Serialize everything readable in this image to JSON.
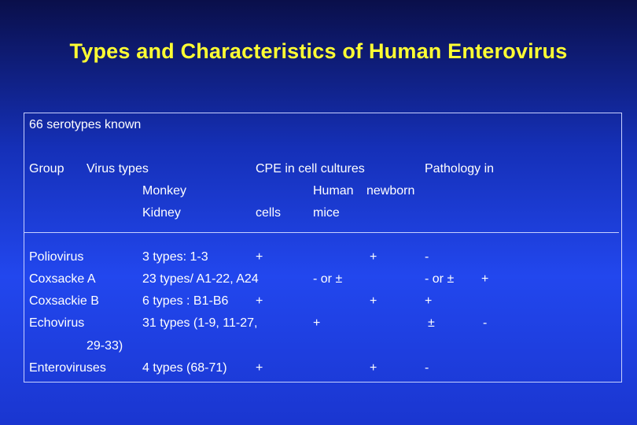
{
  "title": "Types and Characteristics of Human Enterovirus",
  "intro": "66 serotypes known",
  "header": {
    "group": "Group",
    "virus_types": "Virus types",
    "cpe": "CPE in cell cultures",
    "pathology": "Pathology in",
    "monkey": "Monkey",
    "human": "Human",
    "newborn": "newborn",
    "kidney": "Kidney",
    "cells": "cells",
    "mice": "mice"
  },
  "rows": [
    {
      "group": "Poliovirus",
      "types": "3 types: 1-3",
      "monkey": "+",
      "human": "+",
      "mice": "-",
      "extra": ""
    },
    {
      "group": "Coxsacke A",
      "types": "23 types/ A1-22, A24",
      "monkey": "",
      "human": "- or ±",
      "mice": "- or ±",
      "extra": "+"
    },
    {
      "group": "Coxsackie B",
      "types": "6 types : B1-B6",
      "monkey": "+",
      "human": "+",
      "mice": "+",
      "extra": ""
    },
    {
      "group": "Echovirus",
      "types": "31 types (1-9, 11-27,",
      "monkey": "",
      "human": "+",
      "mice": "±",
      "extra": "-"
    },
    {
      "group": "Enteroviruses",
      "types": "4 types (68-71)",
      "monkey": "+",
      "human": "+",
      "mice": "-",
      "extra": ""
    }
  ],
  "echovirus_continuation": "29-33)"
}
